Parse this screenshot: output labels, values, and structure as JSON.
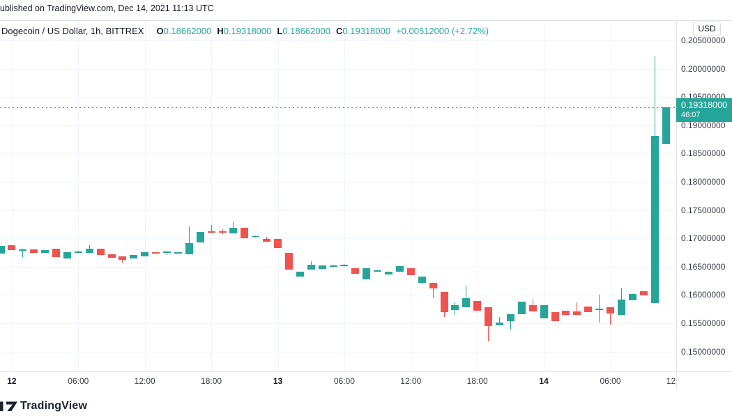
{
  "header": {
    "attribution": "ublished on TradingView.com, Dec 14, 2021 11:13 UTC"
  },
  "legend": {
    "symbol": "Dogecoin / US Dollar, 1h, BITTREX",
    "open_label": "O",
    "open": "0.18662000",
    "high_label": "H",
    "high": "0.19318000",
    "low_label": "L",
    "low": "0.18662000",
    "close_label": "C",
    "close": "0.19318000",
    "change": "+0.00512000 (+2.72%)"
  },
  "price_axis": {
    "currency_badge": "USD",
    "ticks": [
      "0.20500000",
      "0.20000000",
      "0.19500000",
      "0.19000000",
      "0.18500000",
      "0.18000000",
      "0.17500000",
      "0.17000000",
      "0.16500000",
      "0.16000000",
      "0.15500000",
      "0.15000000"
    ],
    "last_price": {
      "price": "0.19318000",
      "countdown": "46:07"
    }
  },
  "time_axis": {
    "ticks": [
      {
        "label": "12",
        "day": true
      },
      {
        "label": "06:00",
        "day": false
      },
      {
        "label": "12:00",
        "day": false
      },
      {
        "label": "18:00",
        "day": false
      },
      {
        "label": "13",
        "day": true
      },
      {
        "label": "06:00",
        "day": false
      },
      {
        "label": "12:00",
        "day": false
      },
      {
        "label": "18:00",
        "day": false
      },
      {
        "label": "14",
        "day": true
      },
      {
        "label": "06:00",
        "day": false
      },
      {
        "label": "12:00",
        "day": false
      }
    ]
  },
  "watermark": "TradingView",
  "colors": {
    "up": "#26a69a",
    "down": "#ef5350",
    "grid": "#f0f3fa",
    "border": "#e0e3eb",
    "axis_text": "#363a45",
    "text": "#131722"
  },
  "chart_data": {
    "type": "candlestick",
    "title": "Dogecoin / US Dollar, 1h, BITTREX",
    "interval": "1h",
    "start_time_utc": "2021-12-11 23:00",
    "last_close": 0.19318,
    "last_open": 0.18662,
    "ylim": [
      0.1465,
      0.20845
    ],
    "y_ticks": [
      0.205,
      0.2,
      0.195,
      0.19,
      0.185,
      0.18,
      0.175,
      0.17,
      0.165,
      0.16,
      0.155,
      0.15
    ],
    "x_ticks": [
      "12",
      "06:00",
      "12:00",
      "18:00",
      "13",
      "06:00",
      "12:00",
      "18:00",
      "14",
      "06:00",
      "12:00"
    ],
    "legend_position": "top-left",
    "grid": true,
    "candles_ohlc": [
      [
        0.16731,
        0.16867,
        0.16731,
        0.16867
      ],
      [
        0.16879,
        0.16879,
        0.16793,
        0.16793
      ],
      [
        0.16793,
        0.16818,
        0.1667,
        0.16805
      ],
      [
        0.16805,
        0.16805,
        0.16744,
        0.16744
      ],
      [
        0.16744,
        0.16793,
        0.16744,
        0.16793
      ],
      [
        0.16818,
        0.16818,
        0.1667,
        0.1667
      ],
      [
        0.16645,
        0.16756,
        0.16645,
        0.16756
      ],
      [
        0.16756,
        0.16781,
        0.16744,
        0.16768
      ],
      [
        0.16744,
        0.16879,
        0.16744,
        0.16818
      ],
      [
        0.16818,
        0.16818,
        0.16707,
        0.16707
      ],
      [
        0.16719,
        0.16719,
        0.16657,
        0.16657
      ],
      [
        0.16682,
        0.16682,
        0.16571,
        0.1662
      ],
      [
        0.16645,
        0.16707,
        0.16645,
        0.16707
      ],
      [
        0.16682,
        0.16756,
        0.16682,
        0.16756
      ],
      [
        0.16756,
        0.16756,
        0.16731,
        0.16731
      ],
      [
        0.16756,
        0.16781,
        0.16707,
        0.16768
      ],
      [
        0.16744,
        0.16768,
        0.16731,
        0.16756
      ],
      [
        0.16719,
        0.17212,
        0.16719,
        0.16916
      ],
      [
        0.16929,
        0.17113,
        0.16929,
        0.17113
      ],
      [
        0.17126,
        0.17236,
        0.17089,
        0.17101
      ],
      [
        0.17126,
        0.17162,
        0.17077,
        0.17101
      ],
      [
        0.17089,
        0.17298,
        0.17089,
        0.17187
      ],
      [
        0.17187,
        0.17187,
        0.17002,
        0.17002
      ],
      [
        0.17027,
        0.17052,
        0.17015,
        0.1704
      ],
      [
        0.1699,
        0.17027,
        0.16941,
        0.16941
      ],
      [
        0.1699,
        0.1699,
        0.1683,
        0.1683
      ],
      [
        0.16744,
        0.16744,
        0.16448,
        0.16448
      ],
      [
        0.16325,
        0.16411,
        0.16325,
        0.16411
      ],
      [
        0.16448,
        0.16596,
        0.16448,
        0.16534
      ],
      [
        0.1646,
        0.16522,
        0.1646,
        0.16522
      ],
      [
        0.1651,
        0.16534,
        0.16498,
        0.16522
      ],
      [
        0.1651,
        0.16547,
        0.16498,
        0.16534
      ],
      [
        0.16473,
        0.16473,
        0.16374,
        0.16374
      ],
      [
        0.16276,
        0.16473,
        0.16276,
        0.16473
      ],
      [
        0.1643,
        0.16448,
        0.16424,
        0.16436
      ],
      [
        0.16362,
        0.16411,
        0.16362,
        0.16411
      ],
      [
        0.16411,
        0.1651,
        0.16411,
        0.1651
      ],
      [
        0.16473,
        0.16473,
        0.1635,
        0.1635
      ],
      [
        0.16214,
        0.16325,
        0.1619,
        0.16325
      ],
      [
        0.16214,
        0.16214,
        0.15943,
        0.16116
      ],
      [
        0.16054,
        0.16054,
        0.15611,
        0.15697
      ],
      [
        0.15734,
        0.15882,
        0.15648,
        0.1582
      ],
      [
        0.15783,
        0.16165,
        0.15783,
        0.15943
      ],
      [
        0.15894,
        0.15894,
        0.15722,
        0.15722
      ],
      [
        0.15783,
        0.15783,
        0.1518,
        0.1545
      ],
      [
        0.15463,
        0.15611,
        0.15463,
        0.15512
      ],
      [
        0.15537,
        0.1566,
        0.15389,
        0.1566
      ],
      [
        0.1566,
        0.15882,
        0.1566,
        0.15882
      ],
      [
        0.1582,
        0.15931,
        0.15709,
        0.15709
      ],
      [
        0.15586,
        0.1582,
        0.15586,
        0.1582
      ],
      [
        0.15697,
        0.15697,
        0.15537,
        0.15537
      ],
      [
        0.15722,
        0.15722,
        0.15648,
        0.15648
      ],
      [
        0.15709,
        0.1587,
        0.15636,
        0.15648
      ],
      [
        0.15796,
        0.15796,
        0.15697,
        0.15697
      ],
      [
        0.15746,
        0.16005,
        0.15512,
        0.15759
      ],
      [
        0.15783,
        0.15783,
        0.15475,
        0.15672
      ],
      [
        0.15648,
        0.16116,
        0.15648,
        0.15919
      ],
      [
        0.15907,
        0.16017,
        0.15907,
        0.16017
      ],
      [
        0.16067,
        0.16067,
        0.15993,
        0.15993
      ],
      [
        0.15857,
        0.20217,
        0.15857,
        0.18813
      ],
      [
        0.18662,
        0.19318,
        0.18662,
        0.19318
      ]
    ]
  }
}
